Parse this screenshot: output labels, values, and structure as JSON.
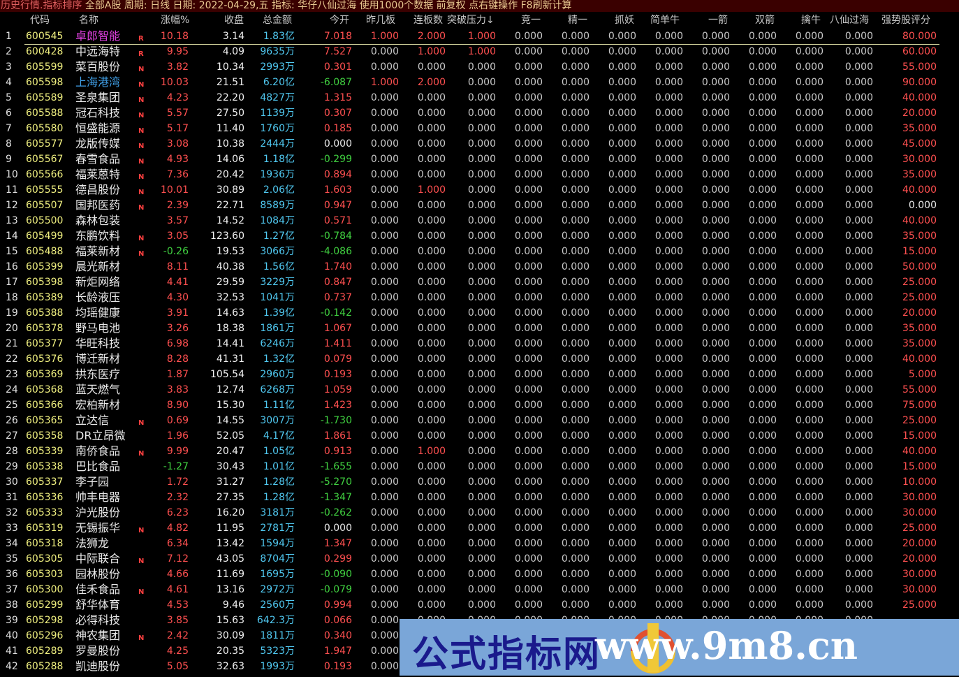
{
  "title": {
    "prefix": "历史行情.指标排序",
    "rest": " 全部A股 周期: 日线 日期: 2022-04-29,五 指标: 华仔八仙过海  使用1000个数据 前复权 点右键操作 F8刷新计算"
  },
  "headers": [
    "代码",
    "名称",
    "涨幅%",
    "收盘",
    "总金额",
    "今开",
    "昨几板",
    "连板数",
    "突破压力↓",
    "竞一",
    "精一",
    "抓妖",
    "简单牛",
    "一箭",
    "双箭",
    "擒牛",
    "八仙过海",
    "强势股评分"
  ],
  "colors": {
    "background": "#000000",
    "code": "#f0f080",
    "up": "#ff5050",
    "down": "#40d040",
    "amount": "#50c8f0",
    "zero": "#c8c8c8",
    "name_highlight_1": "#e040e0",
    "name_highlight_4": "#40a0e8",
    "flag": "#ff4040"
  },
  "watermark": {
    "cn": "公式指标网",
    "url": "www.9m8.cn",
    "logo_text": "www.9m8.cn"
  },
  "rows": [
    [
      "600545",
      "卓郎智能",
      "R",
      "10.18",
      "3.14",
      "1.83亿",
      "7.018",
      "1.000",
      "2.000",
      "1.000",
      "0.000",
      "0.000",
      "0.000",
      "0.000",
      "0.000",
      "0.000",
      "0.000",
      "0.000",
      "80.000"
    ],
    [
      "600428",
      "中远海特",
      "R",
      "9.95",
      "4.09",
      "9635万",
      "7.527",
      "0.000",
      "1.000",
      "1.000",
      "0.000",
      "0.000",
      "0.000",
      "0.000",
      "0.000",
      "0.000",
      "0.000",
      "0.000",
      "60.000"
    ],
    [
      "605599",
      "菜百股份",
      "N",
      "3.82",
      "10.34",
      "2993万",
      "0.301",
      "0.000",
      "0.000",
      "0.000",
      "0.000",
      "0.000",
      "0.000",
      "0.000",
      "0.000",
      "0.000",
      "0.000",
      "0.000",
      "55.000"
    ],
    [
      "605598",
      "上海港湾",
      "N",
      "10.03",
      "21.51",
      "6.20亿",
      "-6.087",
      "1.000",
      "2.000",
      "0.000",
      "0.000",
      "0.000",
      "0.000",
      "0.000",
      "0.000",
      "0.000",
      "0.000",
      "0.000",
      "90.000"
    ],
    [
      "605589",
      "圣泉集团",
      "N",
      "4.23",
      "22.20",
      "4827万",
      "1.315",
      "0.000",
      "0.000",
      "0.000",
      "0.000",
      "0.000",
      "0.000",
      "0.000",
      "0.000",
      "0.000",
      "0.000",
      "0.000",
      "40.000"
    ],
    [
      "605588",
      "冠石科技",
      "N",
      "5.57",
      "27.50",
      "1139万",
      "0.307",
      "0.000",
      "0.000",
      "0.000",
      "0.000",
      "0.000",
      "0.000",
      "0.000",
      "0.000",
      "0.000",
      "0.000",
      "0.000",
      "20.000"
    ],
    [
      "605580",
      "恒盛能源",
      "N",
      "5.17",
      "11.40",
      "1760万",
      "0.185",
      "0.000",
      "0.000",
      "0.000",
      "0.000",
      "0.000",
      "0.000",
      "0.000",
      "0.000",
      "0.000",
      "0.000",
      "0.000",
      "35.000"
    ],
    [
      "605577",
      "龙版传媒",
      "N",
      "3.08",
      "10.38",
      "2444万",
      "0.000",
      "0.000",
      "0.000",
      "0.000",
      "0.000",
      "0.000",
      "0.000",
      "0.000",
      "0.000",
      "0.000",
      "0.000",
      "0.000",
      "45.000"
    ],
    [
      "605567",
      "春雪食品",
      "N",
      "4.93",
      "14.06",
      "1.18亿",
      "-0.299",
      "0.000",
      "0.000",
      "0.000",
      "0.000",
      "0.000",
      "0.000",
      "0.000",
      "0.000",
      "0.000",
      "0.000",
      "0.000",
      "30.000"
    ],
    [
      "605566",
      "福莱蒽特",
      "N",
      "7.36",
      "20.42",
      "1936万",
      "0.894",
      "0.000",
      "0.000",
      "0.000",
      "0.000",
      "0.000",
      "0.000",
      "0.000",
      "0.000",
      "0.000",
      "0.000",
      "0.000",
      "35.000"
    ],
    [
      "605555",
      "德昌股份",
      "N",
      "10.01",
      "30.89",
      "2.06亿",
      "1.603",
      "0.000",
      "1.000",
      "0.000",
      "0.000",
      "0.000",
      "0.000",
      "0.000",
      "0.000",
      "0.000",
      "0.000",
      "0.000",
      "40.000"
    ],
    [
      "605507",
      "国邦医药",
      "N",
      "2.39",
      "22.71",
      "8589万",
      "0.947",
      "0.000",
      "0.000",
      "0.000",
      "0.000",
      "0.000",
      "0.000",
      "0.000",
      "0.000",
      "0.000",
      "0.000",
      "0.000",
      "0.000"
    ],
    [
      "605500",
      "森林包装",
      "",
      "3.57",
      "14.52",
      "1084万",
      "0.571",
      "0.000",
      "0.000",
      "0.000",
      "0.000",
      "0.000",
      "0.000",
      "0.000",
      "0.000",
      "0.000",
      "0.000",
      "0.000",
      "40.000"
    ],
    [
      "605499",
      "东鹏饮料",
      "N",
      "3.05",
      "123.60",
      "1.27亿",
      "-0.784",
      "0.000",
      "0.000",
      "0.000",
      "0.000",
      "0.000",
      "0.000",
      "0.000",
      "0.000",
      "0.000",
      "0.000",
      "0.000",
      "35.000"
    ],
    [
      "605488",
      "福莱新材",
      "N",
      "-0.26",
      "19.53",
      "3066万",
      "-4.086",
      "0.000",
      "0.000",
      "0.000",
      "0.000",
      "0.000",
      "0.000",
      "0.000",
      "0.000",
      "0.000",
      "0.000",
      "0.000",
      "15.000"
    ],
    [
      "605399",
      "晨光新材",
      "",
      "8.11",
      "40.38",
      "1.56亿",
      "1.740",
      "0.000",
      "0.000",
      "0.000",
      "0.000",
      "0.000",
      "0.000",
      "0.000",
      "0.000",
      "0.000",
      "0.000",
      "0.000",
      "50.000"
    ],
    [
      "605398",
      "新炬网络",
      "",
      "4.41",
      "29.59",
      "3229万",
      "0.847",
      "0.000",
      "0.000",
      "0.000",
      "0.000",
      "0.000",
      "0.000",
      "0.000",
      "0.000",
      "0.000",
      "0.000",
      "0.000",
      "25.000"
    ],
    [
      "605389",
      "长龄液压",
      "",
      "4.30",
      "32.53",
      "1041万",
      "0.737",
      "0.000",
      "0.000",
      "0.000",
      "0.000",
      "0.000",
      "0.000",
      "0.000",
      "0.000",
      "0.000",
      "0.000",
      "0.000",
      "25.000"
    ],
    [
      "605388",
      "均瑶健康",
      "",
      "3.91",
      "14.63",
      "1.39亿",
      "-0.142",
      "0.000",
      "0.000",
      "0.000",
      "0.000",
      "0.000",
      "0.000",
      "0.000",
      "0.000",
      "0.000",
      "0.000",
      "0.000",
      "20.000"
    ],
    [
      "605378",
      "野马电池",
      "",
      "3.26",
      "18.38",
      "1861万",
      "1.067",
      "0.000",
      "0.000",
      "0.000",
      "0.000",
      "0.000",
      "0.000",
      "0.000",
      "0.000",
      "0.000",
      "0.000",
      "0.000",
      "35.000"
    ],
    [
      "605377",
      "华旺科技",
      "",
      "6.98",
      "14.41",
      "6246万",
      "1.411",
      "0.000",
      "0.000",
      "0.000",
      "0.000",
      "0.000",
      "0.000",
      "0.000",
      "0.000",
      "0.000",
      "0.000",
      "0.000",
      "35.000"
    ],
    [
      "605376",
      "博迁新材",
      "",
      "8.28",
      "41.31",
      "1.32亿",
      "0.079",
      "0.000",
      "0.000",
      "0.000",
      "0.000",
      "0.000",
      "0.000",
      "0.000",
      "0.000",
      "0.000",
      "0.000",
      "0.000",
      "40.000"
    ],
    [
      "605369",
      "拱东医疗",
      "",
      "1.87",
      "105.54",
      "2960万",
      "0.193",
      "0.000",
      "0.000",
      "0.000",
      "0.000",
      "0.000",
      "0.000",
      "0.000",
      "0.000",
      "0.000",
      "0.000",
      "0.000",
      "5.000"
    ],
    [
      "605368",
      "蓝天燃气",
      "",
      "3.83",
      "12.74",
      "6268万",
      "1.059",
      "0.000",
      "0.000",
      "0.000",
      "0.000",
      "0.000",
      "0.000",
      "0.000",
      "0.000",
      "0.000",
      "0.000",
      "0.000",
      "55.000"
    ],
    [
      "605366",
      "宏柏新材",
      "",
      "8.90",
      "15.30",
      "1.11亿",
      "1.423",
      "0.000",
      "0.000",
      "0.000",
      "0.000",
      "0.000",
      "0.000",
      "0.000",
      "0.000",
      "0.000",
      "0.000",
      "0.000",
      "75.000"
    ],
    [
      "605365",
      "立达信",
      "N",
      "0.69",
      "14.55",
      "3007万",
      "-1.730",
      "0.000",
      "0.000",
      "0.000",
      "0.000",
      "0.000",
      "0.000",
      "0.000",
      "0.000",
      "0.000",
      "0.000",
      "0.000",
      "25.000"
    ],
    [
      "605358",
      "DR立昂微",
      "",
      "1.96",
      "52.05",
      "4.17亿",
      "1.861",
      "0.000",
      "0.000",
      "0.000",
      "0.000",
      "0.000",
      "0.000",
      "0.000",
      "0.000",
      "0.000",
      "0.000",
      "0.000",
      "15.000"
    ],
    [
      "605339",
      "南侨食品",
      "N",
      "9.99",
      "20.47",
      "1.05亿",
      "0.913",
      "0.000",
      "1.000",
      "0.000",
      "0.000",
      "0.000",
      "0.000",
      "0.000",
      "0.000",
      "0.000",
      "0.000",
      "0.000",
      "40.000"
    ],
    [
      "605338",
      "巴比食品",
      "",
      "-1.27",
      "30.43",
      "1.01亿",
      "-1.655",
      "0.000",
      "0.000",
      "0.000",
      "0.000",
      "0.000",
      "0.000",
      "0.000",
      "0.000",
      "0.000",
      "0.000",
      "0.000",
      "15.000"
    ],
    [
      "605337",
      "李子园",
      "",
      "1.72",
      "31.27",
      "1.28亿",
      "-5.270",
      "0.000",
      "0.000",
      "0.000",
      "0.000",
      "0.000",
      "0.000",
      "0.000",
      "0.000",
      "0.000",
      "0.000",
      "0.000",
      "10.000"
    ],
    [
      "605336",
      "帅丰电器",
      "",
      "2.32",
      "27.35",
      "1.28亿",
      "-1.347",
      "0.000",
      "0.000",
      "0.000",
      "0.000",
      "0.000",
      "0.000",
      "0.000",
      "0.000",
      "0.000",
      "0.000",
      "0.000",
      "30.000"
    ],
    [
      "605333",
      "沪光股份",
      "",
      "6.23",
      "16.20",
      "3181万",
      "-0.262",
      "0.000",
      "0.000",
      "0.000",
      "0.000",
      "0.000",
      "0.000",
      "0.000",
      "0.000",
      "0.000",
      "0.000",
      "0.000",
      "30.000"
    ],
    [
      "605319",
      "无锡振华",
      "N",
      "4.82",
      "11.95",
      "2781万",
      "0.000",
      "0.000",
      "0.000",
      "0.000",
      "0.000",
      "0.000",
      "0.000",
      "0.000",
      "0.000",
      "0.000",
      "0.000",
      "0.000",
      "25.000"
    ],
    [
      "605318",
      "法狮龙",
      "",
      "6.34",
      "13.42",
      "1594万",
      "1.347",
      "0.000",
      "0.000",
      "0.000",
      "0.000",
      "0.000",
      "0.000",
      "0.000",
      "0.000",
      "0.000",
      "0.000",
      "0.000",
      "20.000"
    ],
    [
      "605305",
      "中际联合",
      "N",
      "7.12",
      "43.05",
      "8704万",
      "0.299",
      "0.000",
      "0.000",
      "0.000",
      "0.000",
      "0.000",
      "0.000",
      "0.000",
      "0.000",
      "0.000",
      "0.000",
      "0.000",
      "20.000"
    ],
    [
      "605303",
      "园林股份",
      "",
      "4.66",
      "11.69",
      "1695万",
      "-0.090",
      "0.000",
      "0.000",
      "0.000",
      "0.000",
      "0.000",
      "0.000",
      "0.000",
      "0.000",
      "0.000",
      "0.000",
      "0.000",
      "30.000"
    ],
    [
      "605300",
      "佳禾食品",
      "N",
      "4.61",
      "13.16",
      "2972万",
      "-0.079",
      "0.000",
      "0.000",
      "0.000",
      "0.000",
      "0.000",
      "0.000",
      "0.000",
      "0.000",
      "0.000",
      "0.000",
      "0.000",
      "30.000"
    ],
    [
      "605299",
      "舒华体育",
      "",
      "4.53",
      "9.46",
      "2560万",
      "0.994",
      "0.000",
      "0.000",
      "0.000",
      "0.000",
      "0.000",
      "0.000",
      "0.000",
      "0.000",
      "0.000",
      "0.000",
      "0.000",
      "25.000"
    ],
    [
      "605298",
      "必得科技",
      "",
      "3.85",
      "15.63",
      "642.3万",
      "0.066",
      "0.000",
      "0.000",
      "0.000",
      "0.000",
      "0.000",
      "0.000",
      "0.000",
      "0.000",
      "0.000",
      "0.000",
      "0.000"
    ],
    [
      "605296",
      "神农集团",
      "N",
      "2.42",
      "30.09",
      "1811万",
      "0.340",
      "0.000"
    ],
    [
      "605289",
      "罗曼股份",
      "",
      "4.25",
      "20.35",
      "5323万",
      "1.947",
      "0.000"
    ],
    [
      "605288",
      "凯迪股份",
      "",
      "5.05",
      "32.63",
      "1993万",
      "0.193",
      "0.000"
    ]
  ]
}
